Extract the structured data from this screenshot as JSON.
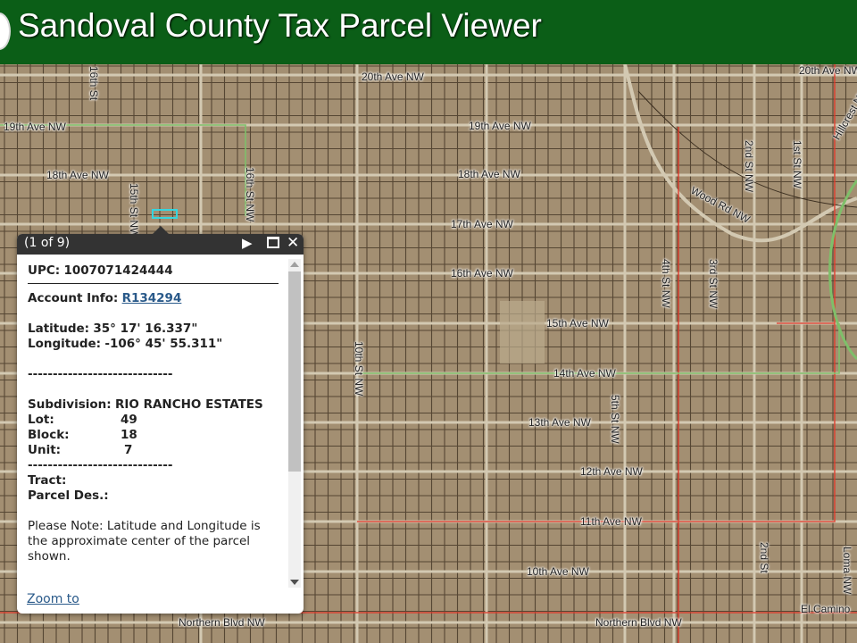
{
  "header": {
    "title": "Sandoval County Tax Parcel Viewer",
    "logo": "county-seal"
  },
  "map": {
    "colors": {
      "ground": "#a38f72",
      "parcel_line": "#3b2e1f",
      "road": "#d3c9b2",
      "boundary_red": "#e03a2a",
      "boundary_green": "#7fbf6a",
      "selection": "#35d6e0"
    },
    "labels": [
      "20th Ave NW",
      "19th Ave NW",
      "19th Ave NW",
      "18th Ave NW",
      "18th Ave NW",
      "17th Ave NW",
      "16th Ave NW",
      "15th Ave NW",
      "14th Ave NW",
      "13th Ave NW",
      "12th Ave NW",
      "11th Ave NW",
      "10th Ave NW",
      "Northern Blvd NW",
      "Northern Blvd NW",
      "Wood Rd NW",
      "El Camino",
      "20th Ave NW"
    ],
    "vertical_labels": [
      "15th St NW",
      "16th St",
      "4th St NW",
      "3rd St NW",
      "2nd St NW",
      "1st St NW",
      "5th St NW",
      "10th St NW",
      "2nd St",
      "Hillcrest NW",
      "Loma NW",
      "16th St NW"
    ]
  },
  "popup": {
    "pager": "(1 of 9)",
    "upc_label": "UPC:",
    "upc": "1007071424444",
    "account_label": "Account Info:",
    "account": "R134294",
    "lat_label": "Latitude:",
    "lat": "35° 17' 16.337\"",
    "lon_label": "Longitude:",
    "lon": "-106° 45' 55.311\"",
    "divider": "-----------------------------",
    "subdivision_label": "Subdivision:",
    "subdivision": "RIO RANCHO ESTATES",
    "lot_label": "Lot:",
    "lot": "49",
    "block_label": "Block:",
    "block": "18",
    "unit_label": "Unit:",
    "unit": "7",
    "tract_label": "Tract:",
    "parcel_des_label": "Parcel Des.:",
    "note": "Please Note: Latitude and Longitude is the approximate center of the parcel shown.",
    "zoom_to": "Zoom to"
  }
}
